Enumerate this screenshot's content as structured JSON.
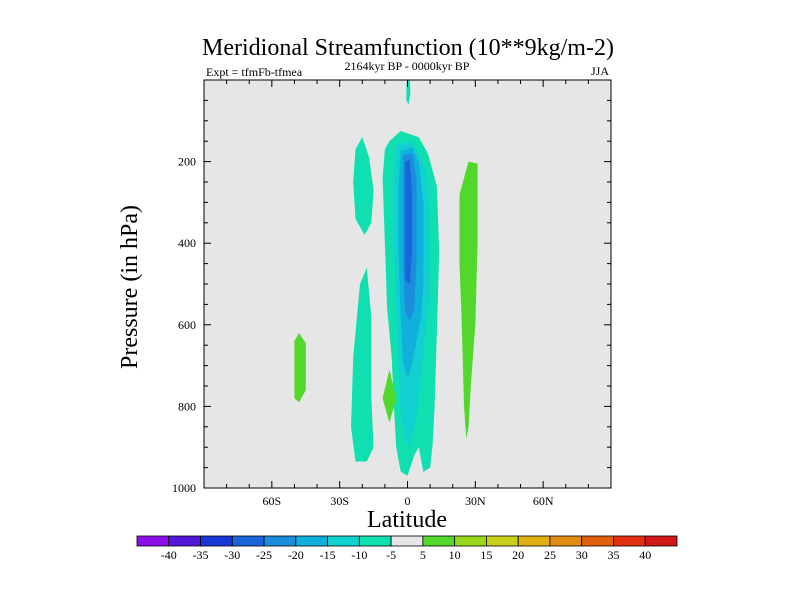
{
  "chart_data": {
    "type": "contour",
    "title": "Meridional Streamfunction (10**9kg/m-2)",
    "subtitle": "2164kyr BP - 0000kyr BP",
    "left_label": "Expt = tfmFb-tfmea",
    "right_label": "JJA",
    "xlabel": "Latitude",
    "ylabel": "Pressure (in hPa)",
    "xlim": [
      -90,
      90
    ],
    "ylim": [
      0,
      1000
    ],
    "y_inverted": true,
    "x_ticks": [
      {
        "value": -60,
        "label": "60S"
      },
      {
        "value": -30,
        "label": "30S"
      },
      {
        "value": 0,
        "label": "0"
      },
      {
        "value": 30,
        "label": "30N"
      },
      {
        "value": 60,
        "label": "60N"
      }
    ],
    "y_ticks": [
      {
        "value": 200,
        "label": "200"
      },
      {
        "value": 400,
        "label": "400"
      },
      {
        "value": 600,
        "label": "600"
      },
      {
        "value": 800,
        "label": "800"
      },
      {
        "value": 1000,
        "label": "1000"
      }
    ],
    "background_color": "#e6e6e6",
    "colorbar": {
      "levels": [
        "-40",
        "-35",
        "-30",
        "-25",
        "-20",
        "-15",
        "-10",
        "-5",
        "5",
        "10",
        "15",
        "20",
        "25",
        "30",
        "35",
        "40"
      ],
      "colors": [
        "#8b10e8",
        "#5018d8",
        "#1838d8",
        "#1c64dc",
        "#1c8cdc",
        "#10b0dc",
        "#10d0d0",
        "#10e0b0",
        "#e6e6e6",
        "#52d82a",
        "#98d81a",
        "#c8d01a",
        "#e0b010",
        "#e08c10",
        "#e06010",
        "#e03010",
        "#d01818"
      ]
    },
    "regions": [
      {
        "name": "contour-neg5-sh-upper",
        "level": "-5",
        "color": "#10e0b0",
        "points": [
          [
            -20,
            140
          ],
          [
            -17,
            190
          ],
          [
            -15,
            270
          ],
          [
            -16,
            350
          ],
          [
            -19,
            380
          ],
          [
            -23,
            340
          ],
          [
            -24,
            250
          ],
          [
            -23,
            170
          ]
        ]
      },
      {
        "name": "contour-neg5-sh-lower",
        "level": "-5",
        "color": "#10e0b0",
        "points": [
          [
            -18,
            460
          ],
          [
            -16,
            580
          ],
          [
            -16,
            780
          ],
          [
            -15,
            900
          ],
          [
            -18,
            935
          ],
          [
            -23,
            935
          ],
          [
            -25,
            850
          ],
          [
            -24,
            680
          ],
          [
            -21,
            500
          ]
        ]
      },
      {
        "name": "contour-neg5-main",
        "level": "-5",
        "color": "#10e0b0",
        "points": [
          [
            -8,
            150
          ],
          [
            -3,
            125
          ],
          [
            5,
            140
          ],
          [
            9,
            180
          ],
          [
            13,
            260
          ],
          [
            14,
            420
          ],
          [
            13,
            620
          ],
          [
            12,
            800
          ],
          [
            11,
            900
          ],
          [
            10,
            950
          ],
          [
            7,
            960
          ],
          [
            5,
            900
          ],
          [
            3,
            920
          ],
          [
            0,
            970
          ],
          [
            -3,
            960
          ],
          [
            -5,
            900
          ],
          [
            -6,
            800
          ],
          [
            -7,
            680
          ],
          [
            -9,
            560
          ],
          [
            -10,
            400
          ],
          [
            -11,
            240
          ],
          [
            -10,
            170
          ]
        ]
      },
      {
        "name": "contour-neg10-main",
        "level": "-10",
        "color": "#10d0d0",
        "points": [
          [
            -5,
            160
          ],
          [
            2,
            150
          ],
          [
            6,
            190
          ],
          [
            9,
            240
          ],
          [
            10,
            380
          ],
          [
            10,
            520
          ],
          [
            8,
            620
          ],
          [
            6,
            720
          ],
          [
            4,
            830
          ],
          [
            1,
            900
          ],
          [
            -1,
            880
          ],
          [
            -3,
            820
          ],
          [
            -4,
            700
          ],
          [
            -5,
            560
          ],
          [
            -6,
            400
          ],
          [
            -6,
            250
          ]
        ]
      },
      {
        "name": "contour-neg15-main",
        "level": "-15",
        "color": "#10b0dc",
        "points": [
          [
            -3,
            175
          ],
          [
            2,
            165
          ],
          [
            5,
            200
          ],
          [
            7,
            300
          ],
          [
            7,
            500
          ],
          [
            6,
            580
          ],
          [
            4,
            640
          ],
          [
            2,
            700
          ],
          [
            0,
            730
          ],
          [
            -2,
            690
          ],
          [
            -3,
            580
          ],
          [
            -4,
            420
          ],
          [
            -4,
            260
          ]
        ]
      },
      {
        "name": "contour-neg20-main",
        "level": "-20",
        "color": "#1c8cdc",
        "points": [
          [
            -2,
            185
          ],
          [
            2,
            180
          ],
          [
            4,
            240
          ],
          [
            4,
            440
          ],
          [
            3,
            560
          ],
          [
            1,
            590
          ],
          [
            -1,
            570
          ],
          [
            -2,
            450
          ],
          [
            -2,
            280
          ]
        ]
      },
      {
        "name": "contour-neg25-main",
        "level": "-25",
        "color": "#1c64dc",
        "points": [
          [
            -1,
            200
          ],
          [
            1,
            195
          ],
          [
            2,
            280
          ],
          [
            2,
            420
          ],
          [
            1,
            500
          ],
          [
            -1,
            490
          ],
          [
            -1,
            360
          ]
        ]
      },
      {
        "name": "contour-neg5-top",
        "level": "-5",
        "color": "#10e0b0",
        "points": [
          [
            0,
            -5
          ],
          [
            1,
            -5
          ],
          [
            1.3,
            30
          ],
          [
            0.5,
            60
          ],
          [
            -0.5,
            50
          ],
          [
            -0.5,
            10
          ]
        ]
      },
      {
        "name": "contour-pos5-nh",
        "level": "5",
        "color": "#52d82a",
        "points": [
          [
            23,
            280
          ],
          [
            27,
            200
          ],
          [
            31,
            205
          ],
          [
            31,
            400
          ],
          [
            30,
            600
          ],
          [
            28,
            750
          ],
          [
            27,
            850
          ],
          [
            26,
            880
          ],
          [
            25,
            800
          ],
          [
            24,
            600
          ],
          [
            23,
            450
          ]
        ]
      },
      {
        "name": "contour-pos5-sh60",
        "level": "5",
        "color": "#52d82a",
        "points": [
          [
            -50,
            640
          ],
          [
            -48,
            620
          ],
          [
            -45,
            645
          ],
          [
            -45,
            760
          ],
          [
            -48,
            790
          ],
          [
            -50,
            780
          ]
        ]
      },
      {
        "name": "contour-pos5-eq",
        "level": "5",
        "color": "#52d82a",
        "points": [
          [
            -11,
            780
          ],
          [
            -8,
            710
          ],
          [
            -5,
            780
          ],
          [
            -8,
            840
          ]
        ]
      }
    ]
  }
}
